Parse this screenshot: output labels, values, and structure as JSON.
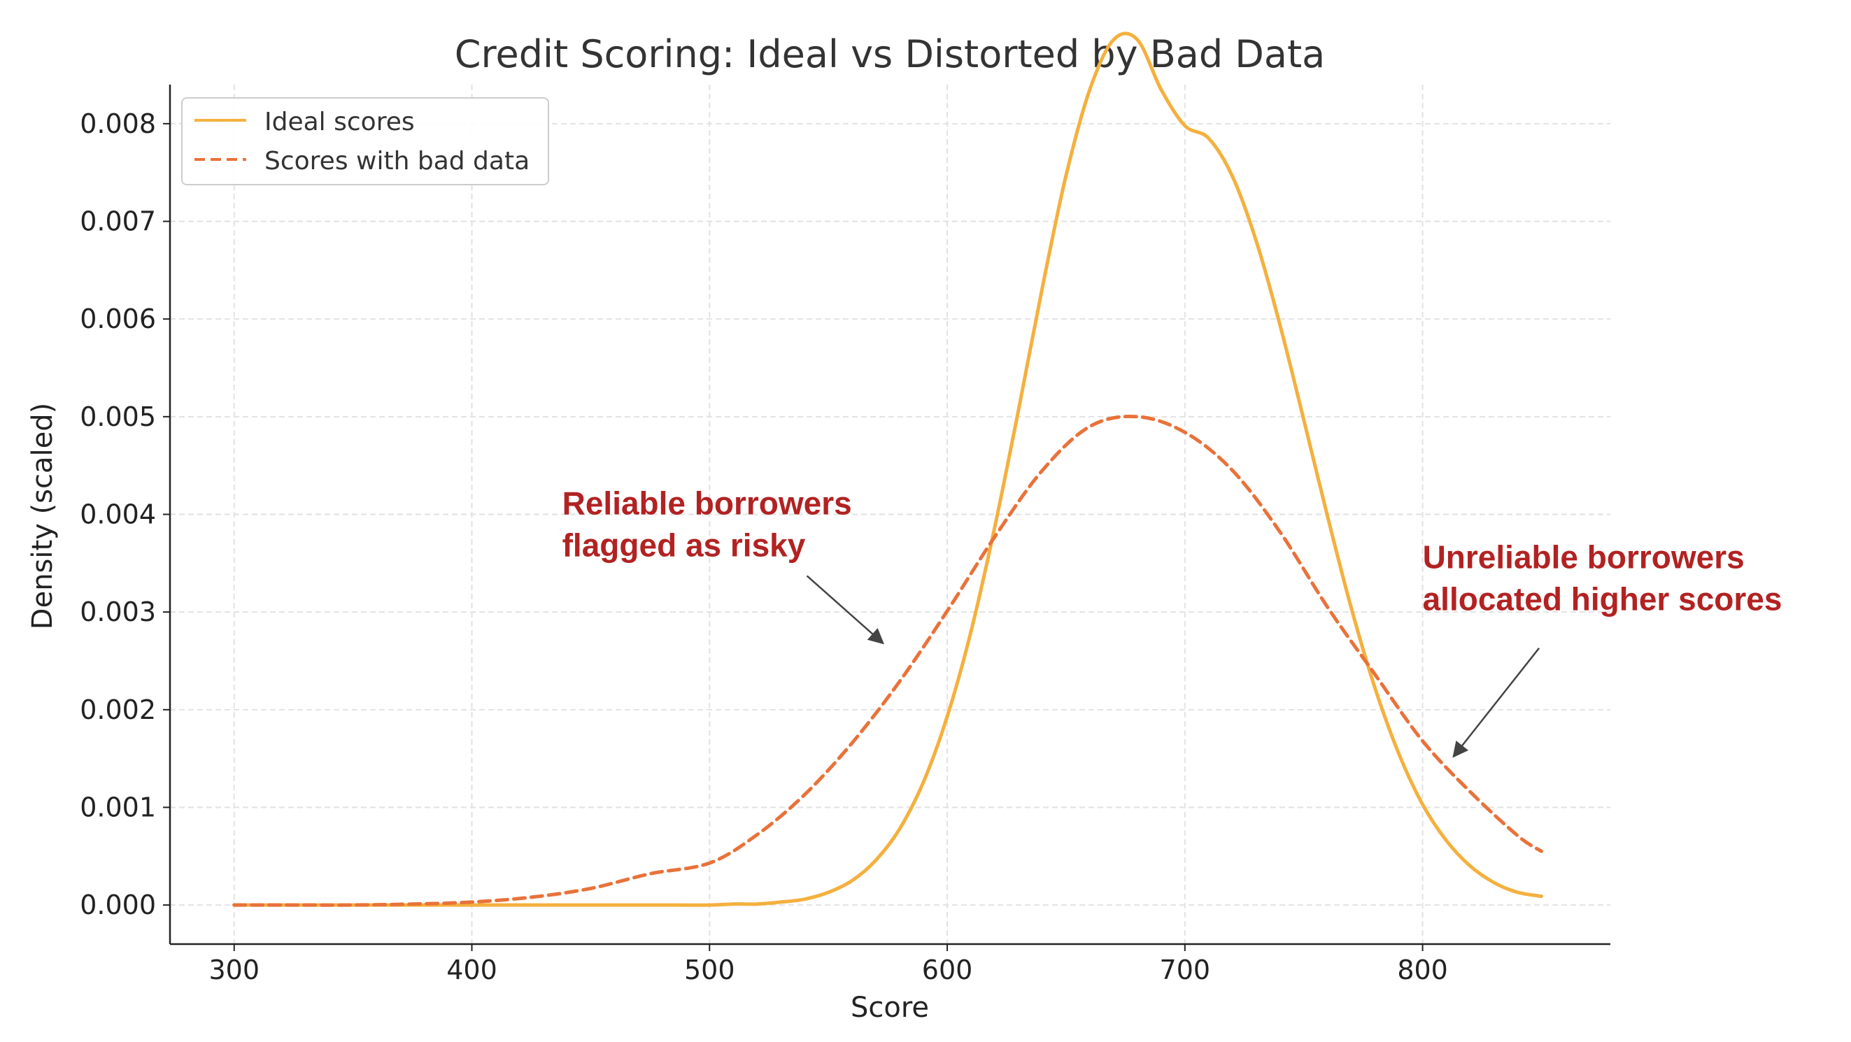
{
  "chart_data": {
    "type": "line",
    "title": "Credit Scoring: Ideal vs Distorted by Bad Data",
    "xlabel": "Score",
    "ylabel": "Density (scaled)",
    "xlim": [
      273,
      879
    ],
    "ylim": [
      -0.0004,
      0.0084
    ],
    "xticks": [
      300,
      400,
      500,
      600,
      700,
      800
    ],
    "xtick_labels": [
      "300",
      "400",
      "500",
      "600",
      "700",
      "800"
    ],
    "yticks": [
      0.0,
      0.001,
      0.002,
      0.003,
      0.004,
      0.005,
      0.006,
      0.007,
      0.008
    ],
    "ytick_labels": [
      "0.000",
      "0.001",
      "0.002",
      "0.003",
      "0.004",
      "0.005",
      "0.006",
      "0.007",
      "0.008"
    ],
    "grid": true,
    "legend_position": "top-left",
    "series": [
      {
        "name": "Ideal scores",
        "color": "#F4B03E",
        "style": "solid",
        "x": [
          300,
          325,
          350,
          375,
          400,
          425,
          450,
          475,
          500,
          510,
          520,
          530,
          540,
          550,
          560,
          570,
          580,
          590,
          600,
          610,
          620,
          630,
          640,
          650,
          660,
          670,
          680,
          690,
          700,
          710,
          720,
          730,
          740,
          750,
          760,
          770,
          780,
          790,
          800,
          810,
          820,
          830,
          840,
          850
        ],
        "y": [
          0.0,
          0.0,
          0.0,
          0.0,
          0.0,
          0.0,
          0.0,
          0.0,
          0.0,
          1e-05,
          1e-05,
          3e-05,
          6e-05,
          0.00013,
          0.00025,
          0.00046,
          0.00078,
          0.00126,
          0.00193,
          0.0028,
          0.00387,
          0.00507,
          0.00632,
          0.00747,
          0.00835,
          0.00886,
          0.00886,
          0.00835,
          0.00798,
          0.00785,
          0.00746,
          0.0068,
          0.00594,
          0.00497,
          0.00398,
          0.00304,
          0.00222,
          0.00155,
          0.00103,
          0.00066,
          0.0004,
          0.00023,
          0.00013,
          9e-05
        ]
      },
      {
        "name": "Scores with bad data",
        "color": "#E8723A",
        "style": "dashed",
        "x": [
          300,
          325,
          350,
          375,
          400,
          425,
          450,
          475,
          500,
          520,
          540,
          560,
          580,
          600,
          620,
          640,
          660,
          680,
          700,
          720,
          740,
          760,
          780,
          800,
          820,
          840,
          850
        ],
        "y": [
          0.0,
          0.0,
          0.0,
          1e-05,
          3e-05,
          8e-05,
          0.00017,
          0.00032,
          0.00043,
          0.00072,
          0.00113,
          0.00166,
          0.00229,
          0.00301,
          0.00377,
          0.00445,
          0.0049,
          0.005,
          0.00484,
          0.00445,
          0.00382,
          0.00305,
          0.00236,
          0.00168,
          0.00116,
          0.00071,
          0.00055
        ]
      }
    ],
    "annotations": [
      {
        "lines": [
          "Reliable borrowers",
          "flagged as risky"
        ],
        "color": "#B22222",
        "text_at": [
          438,
          0.004
        ],
        "arrow_from": [
          541,
          0.00337
        ],
        "arrow_to": [
          573,
          0.00268
        ]
      },
      {
        "lines": [
          "Unreliable borrowers",
          "allocated higher scores"
        ],
        "color": "#B22222",
        "text_at": [
          800,
          0.00345
        ],
        "arrow_from": [
          849,
          0.00263
        ],
        "arrow_to": [
          813,
          0.00152
        ]
      }
    ]
  }
}
